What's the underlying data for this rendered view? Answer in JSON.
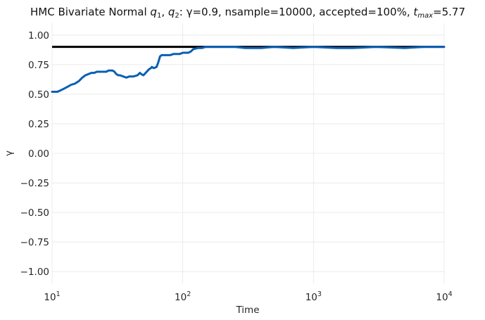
{
  "chart_data": {
    "type": "line",
    "title": {
      "prefix": "HMC Bivariate Normal ",
      "var1": "q",
      "var1_sub": "1",
      "sep": ", ",
      "var2": "q",
      "var2_sub": "2",
      "suffix": ": γ=0.9, nsample=10000, accepted=100%, ",
      "tvar": "t",
      "tvar_sub": "max",
      "tvalue": "=5.77"
    },
    "xlabel": "Time",
    "ylabel": "γ",
    "xscale": "log",
    "xlim": [
      10,
      10000
    ],
    "ylim": [
      -1.1,
      1.1
    ],
    "grid": true,
    "x_ticks": [
      {
        "value": 10,
        "base": "10",
        "exp": "1"
      },
      {
        "value": 100,
        "base": "10",
        "exp": "2"
      },
      {
        "value": 1000,
        "base": "10",
        "exp": "3"
      },
      {
        "value": 10000,
        "base": "10",
        "exp": "4"
      }
    ],
    "y_ticks": [
      {
        "value": 1.0,
        "label": "1.00"
      },
      {
        "value": 0.75,
        "label": "0.75"
      },
      {
        "value": 0.5,
        "label": "0.50"
      },
      {
        "value": 0.25,
        "label": "0.25"
      },
      {
        "value": 0.0,
        "label": "0.00"
      },
      {
        "value": -0.25,
        "label": "−0.25"
      },
      {
        "value": -0.5,
        "label": "−0.50"
      },
      {
        "value": -0.75,
        "label": "−0.75"
      },
      {
        "value": -1.0,
        "label": "−1.00"
      }
    ],
    "reference": {
      "value": 0.9,
      "color": "#000000"
    },
    "series": [
      {
        "color": "#0a5fb3",
        "x": [
          10,
          11,
          12,
          13,
          14,
          15,
          16,
          17,
          18,
          19,
          20,
          21,
          22,
          23,
          24,
          25,
          26,
          27,
          28,
          29,
          30,
          31,
          32,
          33,
          35,
          37,
          39,
          40,
          42,
          45,
          47,
          48,
          50,
          52,
          54,
          55,
          57,
          58,
          60,
          63,
          65,
          67,
          69,
          72,
          75,
          78,
          80,
          85,
          90,
          95,
          100,
          105,
          110,
          115,
          120,
          130,
          140,
          150,
          170,
          200,
          250,
          300,
          400,
          500,
          700,
          1000,
          1500,
          2000,
          3000,
          5000,
          7000,
          10000
        ],
        "y": [
          0.52,
          0.52,
          0.54,
          0.56,
          0.58,
          0.59,
          0.61,
          0.64,
          0.66,
          0.67,
          0.68,
          0.68,
          0.69,
          0.69,
          0.69,
          0.69,
          0.69,
          0.7,
          0.7,
          0.7,
          0.69,
          0.67,
          0.66,
          0.66,
          0.65,
          0.64,
          0.65,
          0.65,
          0.65,
          0.66,
          0.68,
          0.67,
          0.66,
          0.68,
          0.7,
          0.71,
          0.72,
          0.73,
          0.72,
          0.73,
          0.77,
          0.82,
          0.83,
          0.83,
          0.83,
          0.83,
          0.83,
          0.84,
          0.84,
          0.84,
          0.85,
          0.85,
          0.85,
          0.86,
          0.88,
          0.89,
          0.89,
          0.9,
          0.9,
          0.9,
          0.9,
          0.89,
          0.89,
          0.9,
          0.89,
          0.9,
          0.89,
          0.89,
          0.9,
          0.89,
          0.9,
          0.9
        ]
      }
    ]
  }
}
